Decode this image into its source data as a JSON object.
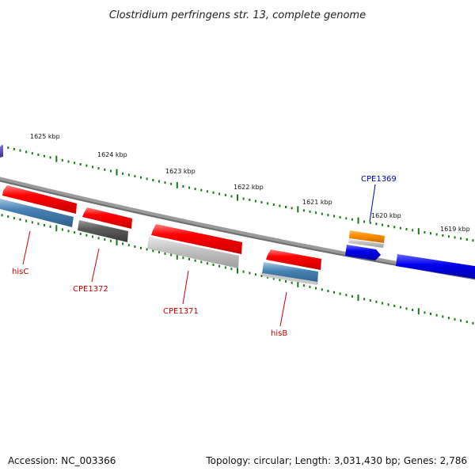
{
  "title": "Clostridium perfringens str. 13, complete genome",
  "footer": {
    "accession": "Accession: NC_003366",
    "summary": "Topology: circular; Length: 3,031,430 bp; Genes: 2,786"
  },
  "scale_labels": [
    "1625 kbp",
    "1624 kbp",
    "1623 kbp",
    "1622 kbp",
    "1621 kbp",
    "1620 kbp",
    "1619 kbp"
  ],
  "gene_labels": [
    "hisC",
    "CPE1372",
    "CPE1371",
    "hisB",
    "CPE1369"
  ],
  "colors": {
    "backbone": "#808080",
    "tick": "#1a7a1a",
    "red_gene": "#ff0000",
    "steelblue_gene": "#4682b4",
    "darkgray_gene": "#555555",
    "lightgray_gene": "#bdbdbd",
    "orange_gene": "#ff8c00",
    "blue_gene": "#0000ee",
    "label_red": "#cc0000",
    "label_blue": "#0000bb"
  }
}
